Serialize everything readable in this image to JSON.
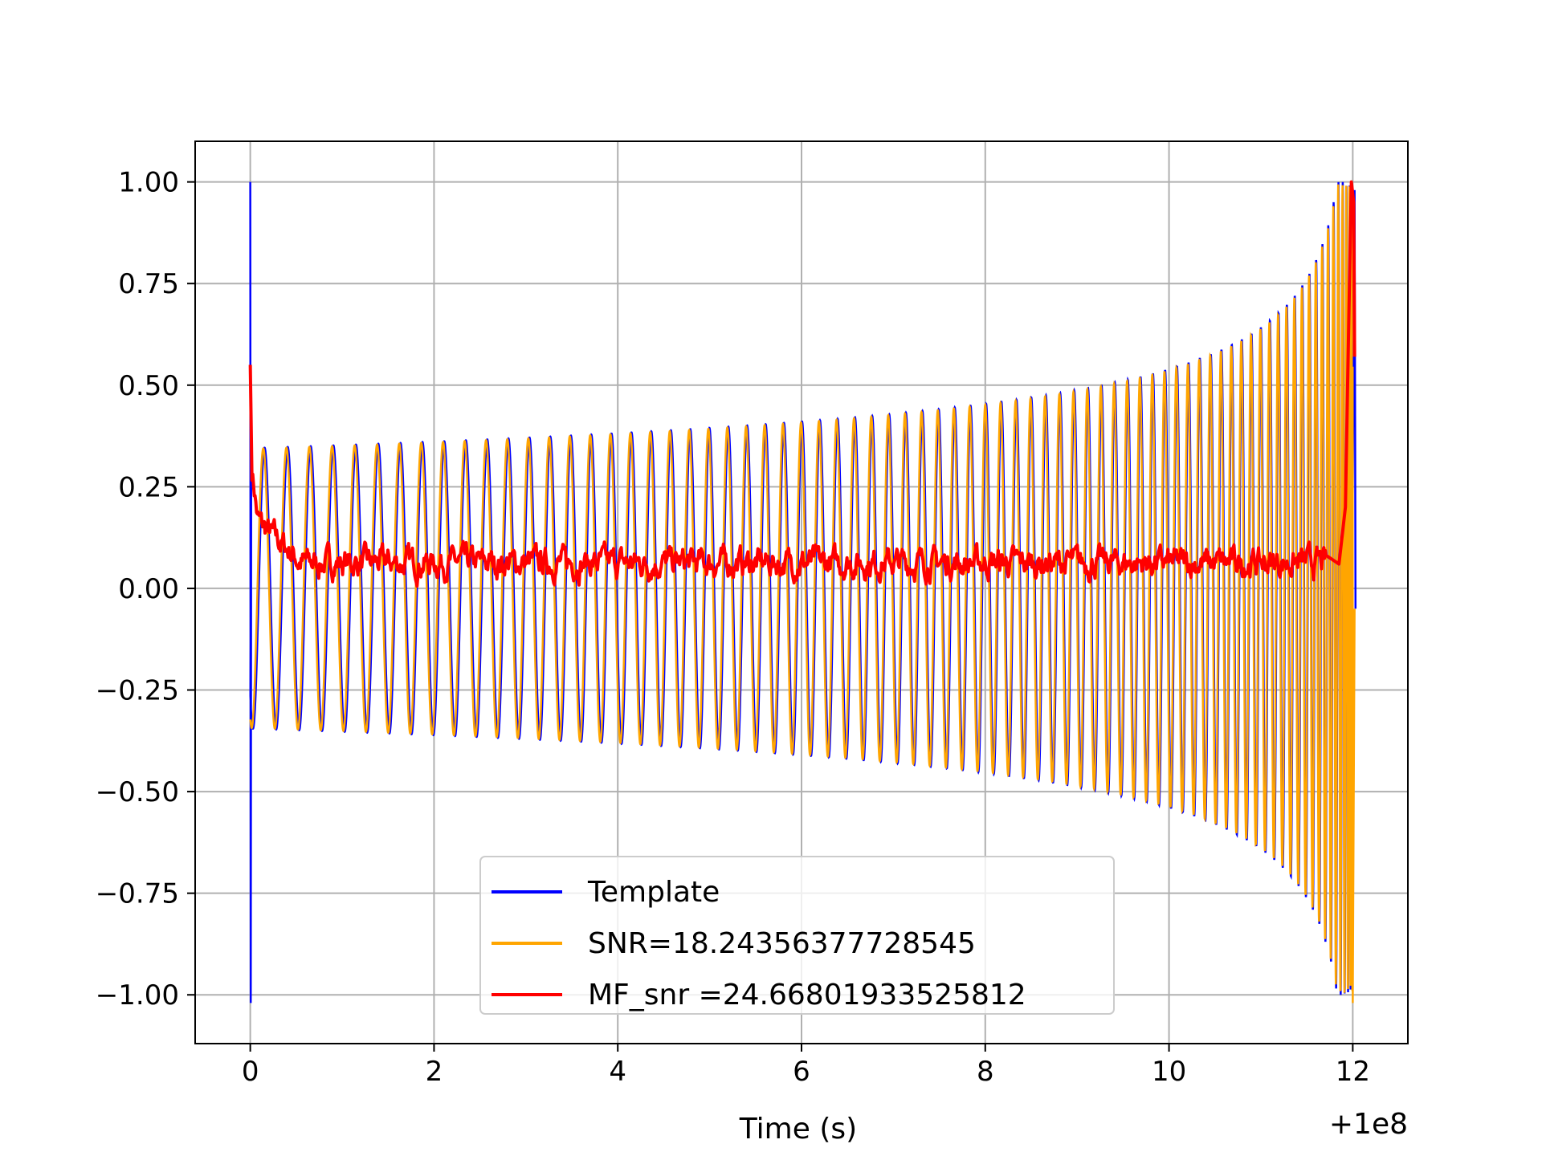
{
  "chart_data": {
    "type": "line",
    "title": "",
    "xlabel": "Time (s)",
    "ylabel": "",
    "x_offset_label": "+1e8",
    "xlim": [
      -0.6,
      12.6
    ],
    "ylim": [
      -1.12,
      1.1
    ],
    "xticks": [
      0,
      2,
      4,
      6,
      8,
      10,
      12
    ],
    "xtick_labels": [
      "0",
      "2",
      "4",
      "6",
      "8",
      "10",
      "12"
    ],
    "yticks": [
      1.0,
      0.75,
      0.5,
      0.25,
      0.0,
      -0.25,
      -0.5,
      -0.75,
      -1.0
    ],
    "ytick_labels": [
      "1.00",
      "0.75",
      "0.50",
      "0.25",
      "0.00",
      "−0.25",
      "−0.50",
      "−0.75",
      "−1.00"
    ],
    "grid": true,
    "legend_position": "lower-center",
    "series": [
      {
        "name": "Template",
        "color": "#0000ff",
        "description_points": {
          "time_start": 0.0,
          "time_end": 12.0,
          "amplitude_start": 0.38,
          "amplitude_mid": 0.45,
          "amplitude_at_10": 0.57,
          "amplitude_end": 1.0,
          "spike_at_start": 1.0
        }
      },
      {
        "name": "SNR=18.24356377728545",
        "color": "#ffa500",
        "description_points": {
          "time_start": 0.0,
          "time_end": 12.0,
          "amplitude_start": 0.38,
          "amplitude_end": 1.0
        }
      },
      {
        "name": "MF_snr =24.66801933525812",
        "color": "#ff0000",
        "description_points": {
          "time_start": 0.0,
          "time_end": 12.0,
          "start_value": 0.55,
          "baseline": 0.05,
          "noise_range": [
            0.0,
            0.15
          ],
          "end_spike": 1.0,
          "end_value": 0.57
        }
      }
    ]
  }
}
